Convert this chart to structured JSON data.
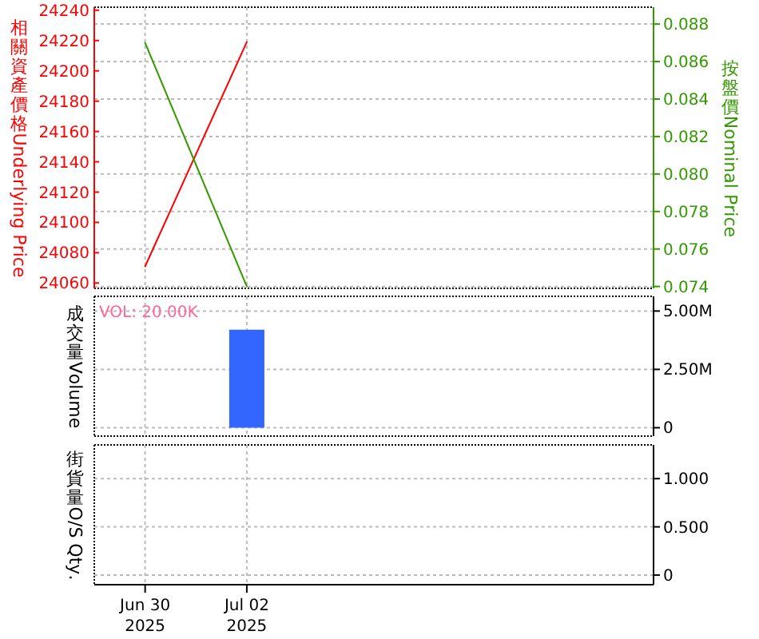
{
  "chart_data": [
    {
      "type": "line",
      "ylabel": "相關資產價格Underlying Price",
      "y2label": "按盤價Nominal Price",
      "x": [
        "2025-06-30",
        "2025-07-02"
      ],
      "series": [
        {
          "color": "#ff0000",
          "values": [
            24071,
            24219
          ]
        },
        {
          "color": "#339900",
          "axis": "y2",
          "values": [
            0.087,
            0.074
          ]
        }
      ],
      "xlim": [
        "2025-06-29",
        "2025-07-10"
      ],
      "xticks": [
        {
          "value": "2025-06-30",
          "label": null
        },
        {
          "value": "2025-07-02",
          "label": null
        }
      ],
      "ylim": [
        24056.5,
        24242
      ],
      "yticks": [
        24060,
        24080,
        24100,
        24120,
        24140,
        24160,
        24180,
        24200,
        24220,
        24240
      ],
      "y2lim": [
        0.0739,
        0.0889
      ],
      "y2ticks": [
        0.074,
        0.076,
        0.078,
        {
          "value": 0.08,
          "label": "0.080"
        },
        0.082,
        0.084,
        0.086,
        0.088
      ],
      "tick_labels": "y",
      "grid": true
    },
    {
      "type": "bar",
      "ylabel": "成交量Volume",
      "x": [
        "2025-07-02"
      ],
      "series": [
        {
          "color": "#3366ff",
          "axis": "y2",
          "values": [
            4200000
          ]
        }
      ],
      "xlim": [
        "2025-06-29",
        "2025-07-10"
      ],
      "xticks": [
        {
          "value": "2025-06-30",
          "label": null
        },
        {
          "value": "2025-07-02",
          "label": null
        }
      ],
      "y2lim": [
        -360000,
        5630000
      ],
      "y2ticks": [
        0,
        {
          "value": 2500000,
          "label": "2.50M"
        },
        {
          "value": 5000000,
          "label": "5.00M"
        }
      ],
      "annotations": [
        "VOL: 20.00K"
      ],
      "tick_labels": "y",
      "grid": true
    },
    {
      "type": "line",
      "ylabel": "街貨量O/S Qty.",
      "xlim": [
        "2025-06-29",
        "2025-07-10"
      ],
      "xticks": [
        {
          "value": "2025-06-30",
          "label": "Jun 30\n2025"
        },
        {
          "value": "2025-07-02",
          "label": "Jul 02\n2025"
        }
      ],
      "y2lim": [
        -0.1,
        1.35
      ],
      "y2ticks": [
        0,
        {
          "value": 0.5,
          "label": "0.500"
        },
        {
          "value": 1,
          "label": "1.000"
        }
      ],
      "grid": true
    }
  ]
}
